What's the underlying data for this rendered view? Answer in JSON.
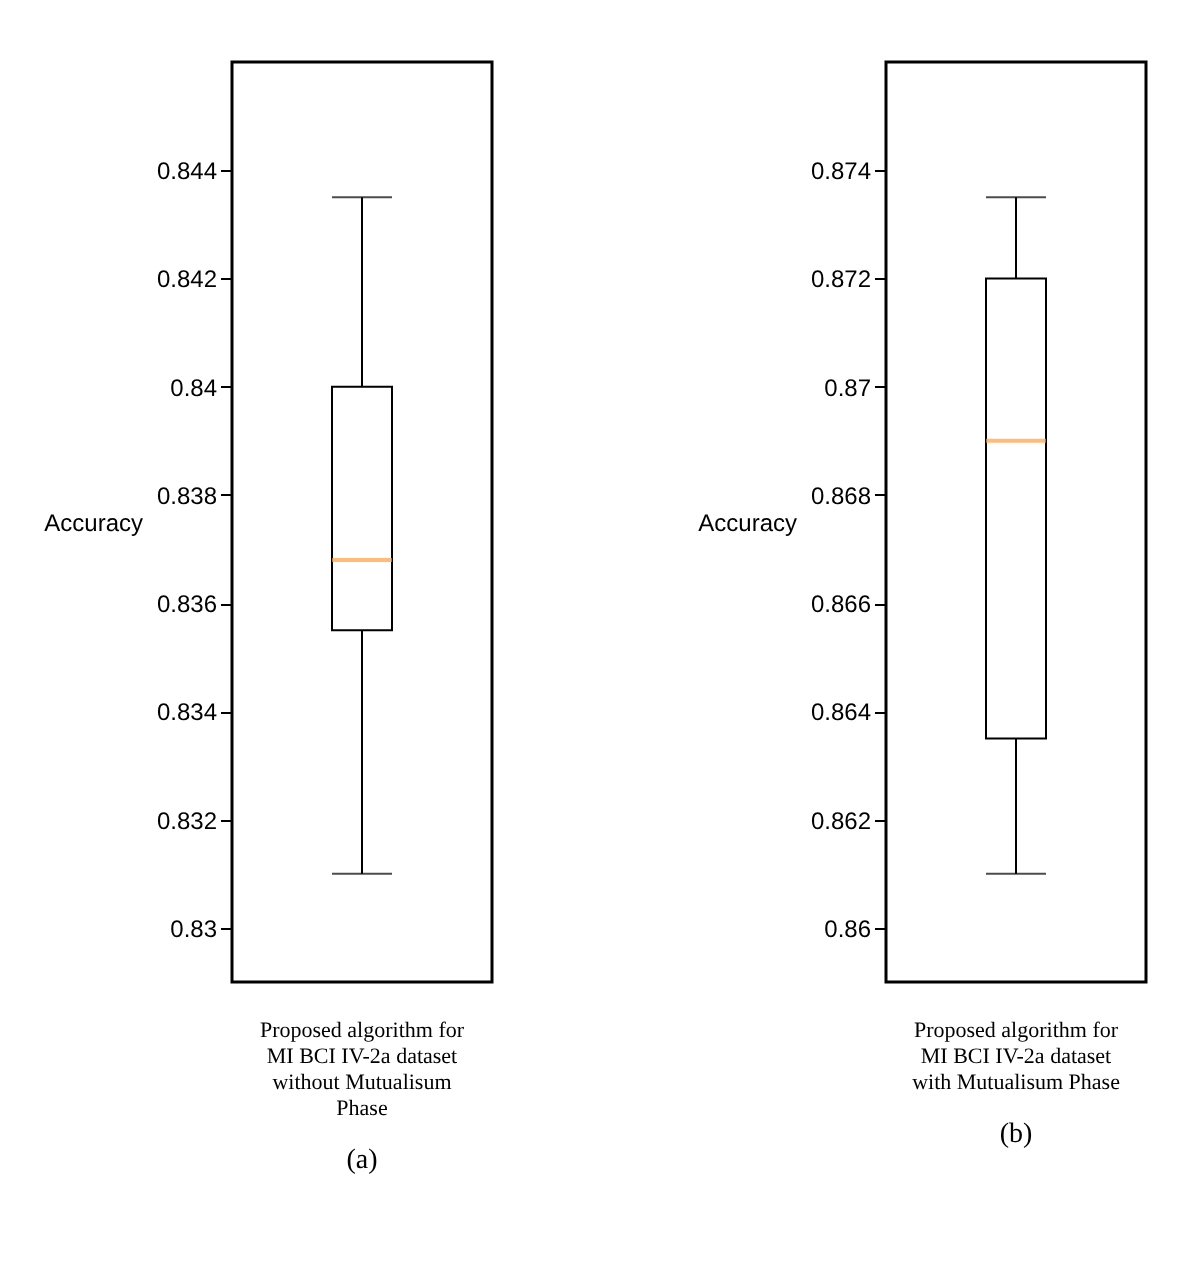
{
  "chart_data": [
    {
      "type": "box",
      "title": "(a)",
      "ylabel": "Accuracy",
      "categories": [
        "Proposed algorithm for MI BCI IV-2a dataset without Mutualisum Phase"
      ],
      "boxes": [
        {
          "low": 0.831,
          "q1": 0.8355,
          "median": 0.8368,
          "q3": 0.84,
          "high": 0.8435
        }
      ],
      "ylim": [
        0.829,
        0.846
      ],
      "yticks": [
        0.83,
        0.832,
        0.834,
        0.836,
        0.838,
        0.84,
        0.842,
        0.844
      ],
      "grid": false
    },
    {
      "type": "box",
      "title": "(b)",
      "ylabel": "Accuracy",
      "categories": [
        "Proposed algorithm for MI BCI IV-2a dataset with Mutualisum Phase"
      ],
      "boxes": [
        {
          "low": 0.861,
          "q1": 0.8635,
          "median": 0.869,
          "q3": 0.872,
          "high": 0.8735
        }
      ],
      "ylim": [
        0.859,
        0.876
      ],
      "yticks": [
        0.86,
        0.862,
        0.864,
        0.866,
        0.868,
        0.87,
        0.872,
        0.874
      ],
      "grid": false
    }
  ]
}
